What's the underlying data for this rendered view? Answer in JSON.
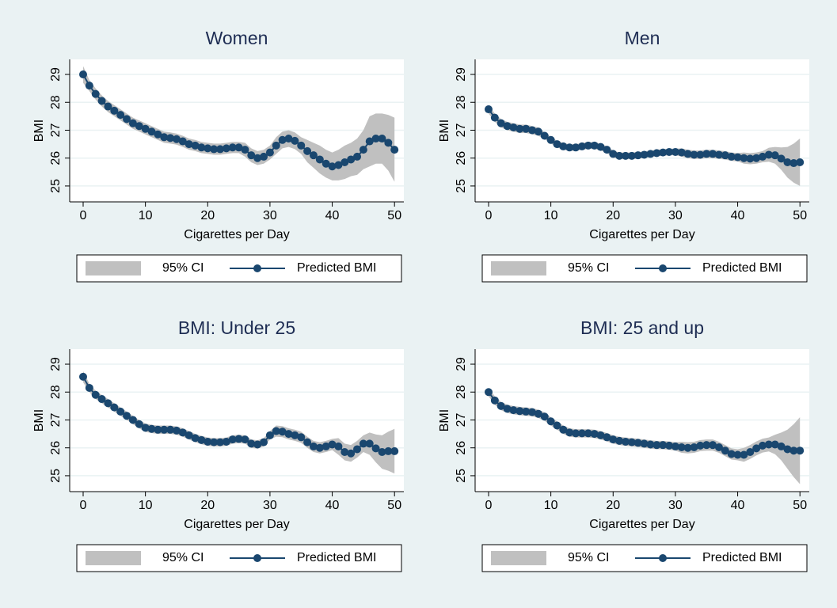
{
  "chart_data": [
    {
      "type": "line",
      "title": "Women",
      "x_label": "Cigarettes per Day",
      "y_label": "BMI",
      "x": [
        0,
        1,
        2,
        3,
        4,
        5,
        6,
        7,
        8,
        9,
        10,
        11,
        12,
        13,
        14,
        15,
        16,
        17,
        18,
        19,
        20,
        21,
        22,
        23,
        24,
        25,
        26,
        27,
        28,
        29,
        30,
        31,
        32,
        33,
        34,
        35,
        36,
        37,
        38,
        39,
        40,
        41,
        42,
        43,
        44,
        45,
        46,
        47,
        48,
        49,
        50
      ],
      "band": {
        "name": "95% CI",
        "color": "#c0c0c0"
      },
      "series": [
        {
          "name": "Predicted BMI",
          "color": "#1a476f",
          "values": [
            29.0,
            28.6,
            28.3,
            28.05,
            27.85,
            27.7,
            27.55,
            27.4,
            27.25,
            27.15,
            27.05,
            26.95,
            26.85,
            26.75,
            26.72,
            26.68,
            26.6,
            26.5,
            26.45,
            26.38,
            26.35,
            26.32,
            26.32,
            26.35,
            26.38,
            26.38,
            26.3,
            26.1,
            26.0,
            26.05,
            26.2,
            26.45,
            26.65,
            26.7,
            26.62,
            26.45,
            26.25,
            26.1,
            25.95,
            25.8,
            25.7,
            25.75,
            25.85,
            25.95,
            26.05,
            26.3,
            26.6,
            26.7,
            26.7,
            26.55,
            26.3
          ],
          "errors": [
            0.3,
            0.2,
            0.2,
            0.2,
            0.2,
            0.2,
            0.2,
            0.2,
            0.2,
            0.2,
            0.2,
            0.2,
            0.2,
            0.2,
            0.2,
            0.2,
            0.2,
            0.2,
            0.2,
            0.2,
            0.2,
            0.2,
            0.2,
            0.2,
            0.2,
            0.2,
            0.25,
            0.25,
            0.25,
            0.25,
            0.25,
            0.3,
            0.3,
            0.3,
            0.3,
            0.3,
            0.4,
            0.45,
            0.5,
            0.5,
            0.5,
            0.55,
            0.6,
            0.6,
            0.65,
            0.7,
            0.9,
            0.9,
            0.9,
            1.0,
            1.15
          ]
        }
      ],
      "xlim": [
        -2.16,
        51.5
      ],
      "ylim": [
        24.43,
        29.54
      ],
      "xticks": [
        0,
        10,
        20,
        30,
        40,
        50
      ],
      "yticks": [
        25,
        26,
        27,
        28,
        29
      ],
      "grid": true
    },
    {
      "type": "line",
      "title": "Men",
      "x_label": "Cigarettes per Day",
      "y_label": "BMI",
      "x": [
        0,
        1,
        2,
        3,
        4,
        5,
        6,
        7,
        8,
        9,
        10,
        11,
        12,
        13,
        14,
        15,
        16,
        17,
        18,
        19,
        20,
        21,
        22,
        23,
        24,
        25,
        26,
        27,
        28,
        29,
        30,
        31,
        32,
        33,
        34,
        35,
        36,
        37,
        38,
        39,
        40,
        41,
        42,
        43,
        44,
        45,
        46,
        47,
        48,
        49,
        50
      ],
      "band": {
        "name": "95% CI",
        "color": "#c0c0c0"
      },
      "series": [
        {
          "name": "Predicted BMI",
          "color": "#1a476f",
          "values": [
            27.75,
            27.45,
            27.25,
            27.15,
            27.1,
            27.05,
            27.05,
            27.0,
            26.95,
            26.8,
            26.65,
            26.5,
            26.42,
            26.38,
            26.38,
            26.42,
            26.45,
            26.45,
            26.4,
            26.3,
            26.15,
            26.08,
            26.08,
            26.08,
            26.1,
            26.12,
            26.15,
            26.18,
            26.2,
            26.22,
            26.22,
            26.2,
            26.15,
            26.12,
            26.12,
            26.15,
            26.15,
            26.12,
            26.1,
            26.05,
            26.03,
            26.0,
            25.98,
            26.0,
            26.05,
            26.12,
            26.1,
            25.98,
            25.85,
            25.82,
            25.85
          ],
          "errors": [
            0.15,
            0.15,
            0.15,
            0.15,
            0.15,
            0.15,
            0.15,
            0.15,
            0.15,
            0.12,
            0.12,
            0.12,
            0.12,
            0.12,
            0.12,
            0.12,
            0.12,
            0.12,
            0.12,
            0.12,
            0.12,
            0.12,
            0.12,
            0.12,
            0.12,
            0.12,
            0.12,
            0.12,
            0.12,
            0.12,
            0.12,
            0.15,
            0.15,
            0.15,
            0.15,
            0.15,
            0.15,
            0.15,
            0.15,
            0.15,
            0.15,
            0.2,
            0.2,
            0.2,
            0.2,
            0.25,
            0.3,
            0.4,
            0.55,
            0.7,
            0.85
          ]
        }
      ],
      "xlim": [
        -2.16,
        51.5
      ],
      "ylim": [
        24.43,
        29.54
      ],
      "xticks": [
        0,
        10,
        20,
        30,
        40,
        50
      ],
      "yticks": [
        25,
        26,
        27,
        28,
        29
      ],
      "grid": true
    },
    {
      "type": "line",
      "title": "BMI: Under 25",
      "x_label": "Cigarettes per Day",
      "y_label": "BMI",
      "x": [
        0,
        1,
        2,
        3,
        4,
        5,
        6,
        7,
        8,
        9,
        10,
        11,
        12,
        13,
        14,
        15,
        16,
        17,
        18,
        19,
        20,
        21,
        22,
        23,
        24,
        25,
        26,
        27,
        28,
        29,
        30,
        31,
        32,
        33,
        34,
        35,
        36,
        37,
        38,
        39,
        40,
        41,
        42,
        43,
        44,
        45,
        46,
        47,
        48,
        49,
        50
      ],
      "band": {
        "name": "95% CI",
        "color": "#c0c0c0"
      },
      "series": [
        {
          "name": "Predicted BMI",
          "color": "#1a476f",
          "values": [
            28.55,
            28.15,
            27.9,
            27.75,
            27.6,
            27.45,
            27.3,
            27.15,
            27.0,
            26.85,
            26.72,
            26.68,
            26.65,
            26.65,
            26.65,
            26.62,
            26.55,
            26.45,
            26.35,
            26.28,
            26.22,
            26.2,
            26.2,
            26.22,
            26.3,
            26.32,
            26.3,
            26.15,
            26.12,
            26.2,
            26.45,
            26.6,
            26.58,
            26.5,
            26.45,
            26.38,
            26.2,
            26.05,
            26.0,
            26.05,
            26.12,
            26.05,
            25.85,
            25.8,
            25.95,
            26.15,
            26.15,
            25.98,
            25.85,
            25.88,
            25.88
          ],
          "errors": [
            0.2,
            0.15,
            0.15,
            0.15,
            0.15,
            0.15,
            0.15,
            0.15,
            0.15,
            0.15,
            0.15,
            0.15,
            0.15,
            0.15,
            0.15,
            0.15,
            0.15,
            0.15,
            0.15,
            0.15,
            0.15,
            0.15,
            0.15,
            0.15,
            0.15,
            0.15,
            0.15,
            0.15,
            0.15,
            0.15,
            0.15,
            0.2,
            0.2,
            0.2,
            0.2,
            0.2,
            0.2,
            0.2,
            0.2,
            0.2,
            0.2,
            0.3,
            0.3,
            0.3,
            0.3,
            0.3,
            0.4,
            0.5,
            0.6,
            0.7,
            0.8
          ]
        }
      ],
      "xlim": [
        -2.16,
        51.5
      ],
      "ylim": [
        24.43,
        29.54
      ],
      "xticks": [
        0,
        10,
        20,
        30,
        40,
        50
      ],
      "yticks": [
        25,
        26,
        27,
        28,
        29
      ],
      "grid": true
    },
    {
      "type": "line",
      "title": "BMI: 25 and up",
      "x_label": "Cigarettes per Day",
      "y_label": "BMI",
      "x": [
        0,
        1,
        2,
        3,
        4,
        5,
        6,
        7,
        8,
        9,
        10,
        11,
        12,
        13,
        14,
        15,
        16,
        17,
        18,
        19,
        20,
        21,
        22,
        23,
        24,
        25,
        26,
        27,
        28,
        29,
        30,
        31,
        32,
        33,
        34,
        35,
        36,
        37,
        38,
        39,
        40,
        41,
        42,
        43,
        44,
        45,
        46,
        47,
        48,
        49,
        50
      ],
      "band": {
        "name": "95% CI",
        "color": "#c0c0c0"
      },
      "series": [
        {
          "name": "Predicted BMI",
          "color": "#1a476f",
          "values": [
            28.0,
            27.7,
            27.5,
            27.4,
            27.35,
            27.32,
            27.3,
            27.28,
            27.22,
            27.12,
            26.95,
            26.8,
            26.65,
            26.55,
            26.52,
            26.52,
            26.52,
            26.5,
            26.45,
            26.38,
            26.3,
            26.25,
            26.22,
            26.2,
            26.18,
            26.15,
            26.12,
            26.1,
            26.1,
            26.08,
            26.05,
            26.02,
            26.0,
            26.02,
            26.08,
            26.1,
            26.1,
            26.02,
            25.9,
            25.78,
            25.75,
            25.75,
            25.85,
            25.98,
            26.08,
            26.12,
            26.12,
            26.05,
            25.95,
            25.9,
            25.9
          ],
          "errors": [
            0.15,
            0.15,
            0.15,
            0.15,
            0.15,
            0.15,
            0.15,
            0.15,
            0.15,
            0.15,
            0.15,
            0.15,
            0.15,
            0.15,
            0.15,
            0.15,
            0.15,
            0.15,
            0.15,
            0.15,
            0.15,
            0.15,
            0.15,
            0.15,
            0.15,
            0.15,
            0.15,
            0.15,
            0.15,
            0.15,
            0.15,
            0.2,
            0.2,
            0.2,
            0.2,
            0.2,
            0.2,
            0.2,
            0.2,
            0.2,
            0.2,
            0.25,
            0.25,
            0.25,
            0.25,
            0.25,
            0.35,
            0.5,
            0.7,
            0.95,
            1.2
          ]
        }
      ],
      "xlim": [
        -2.16,
        51.5
      ],
      "ylim": [
        24.43,
        29.54
      ],
      "xticks": [
        0,
        10,
        20,
        30,
        40,
        50
      ],
      "yticks": [
        25,
        26,
        27,
        28,
        29
      ],
      "grid": true
    }
  ]
}
